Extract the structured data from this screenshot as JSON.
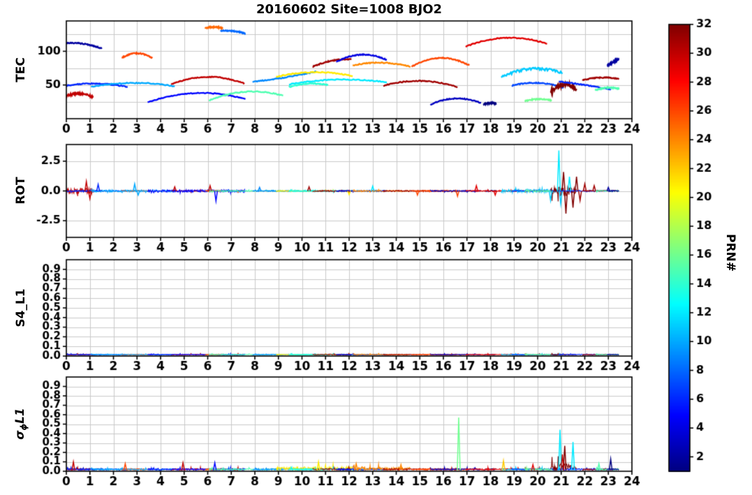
{
  "title": "20160602 Site=1008 BJO2",
  "colorbar": {
    "label": "PRN#",
    "min": 1,
    "max": 32,
    "ticks": [
      2,
      4,
      6,
      8,
      10,
      12,
      14,
      16,
      18,
      20,
      22,
      24,
      26,
      28,
      30,
      32
    ],
    "colormap": "jet"
  },
  "axes": {
    "xlim": [
      0,
      24
    ],
    "xticks": [
      0,
      1,
      2,
      3,
      4,
      5,
      6,
      7,
      8,
      9,
      10,
      11,
      12,
      13,
      14,
      15,
      16,
      17,
      18,
      19,
      20,
      21,
      22,
      23,
      24
    ]
  },
  "panels": [
    {
      "ylabel": "TEC",
      "ylim": [
        0,
        145
      ],
      "yticks": [
        {
          "v": 50,
          "label": "50"
        },
        {
          "v": 100,
          "label": "100"
        }
      ],
      "ygrid": [
        25,
        50,
        75,
        100,
        125
      ]
    },
    {
      "ylabel": "ROT",
      "ylim": [
        -3.9,
        3.9
      ],
      "yticks": [
        {
          "v": 2.5,
          "label": "2.5"
        },
        {
          "v": 0,
          "label": "0.0"
        },
        {
          "v": -2.5,
          "label": "-2.5"
        }
      ],
      "ygrid": [
        -2.5,
        0,
        2.5
      ]
    },
    {
      "ylabel": "S4_L1",
      "ylim": [
        0,
        1
      ],
      "yticks": [
        {
          "v": 0.9,
          "label": "0.9"
        },
        {
          "v": 0.8,
          "label": "0.8"
        },
        {
          "v": 0.7,
          "label": "0.7"
        },
        {
          "v": 0.6,
          "label": "0.6"
        },
        {
          "v": 0.5,
          "label": "0.5"
        },
        {
          "v": 0.4,
          "label": "0.4"
        },
        {
          "v": 0.3,
          "label": "0.3"
        },
        {
          "v": 0.2,
          "label": "0.2"
        },
        {
          "v": 0.1,
          "label": "0.1"
        },
        {
          "v": 0,
          "label": "0.0"
        }
      ],
      "ygrid": [
        0.1,
        0.2,
        0.3,
        0.4,
        0.5,
        0.6,
        0.7,
        0.8,
        0.9
      ]
    },
    {
      "ylabel_main": "σ",
      "ylabel_sub": "ϕ",
      "ylabel_rest": "L1",
      "ylim": [
        0,
        1
      ],
      "yticks": [
        {
          "v": 0.9,
          "label": "0.9"
        },
        {
          "v": 0.8,
          "label": "0.8"
        },
        {
          "v": 0.7,
          "label": "0.7"
        },
        {
          "v": 0.6,
          "label": "0.6"
        },
        {
          "v": 0.5,
          "label": "0.5"
        },
        {
          "v": 0.4,
          "label": "0.4"
        },
        {
          "v": 0.3,
          "label": "0.3"
        },
        {
          "v": 0.2,
          "label": "0.2"
        },
        {
          "v": 0.1,
          "label": "0.1"
        },
        {
          "v": 0,
          "label": "0.0"
        }
      ],
      "ygrid": [
        0.1,
        0.2,
        0.3,
        0.4,
        0.5,
        0.6,
        0.7,
        0.8,
        0.9
      ]
    }
  ],
  "chart_data": {
    "type": "line",
    "panels": [
      "TEC",
      "ROT",
      "S4_L1",
      "sigma_phi_L1"
    ],
    "x_range_hours": [
      0,
      24
    ],
    "prn_range": [
      1,
      32
    ],
    "tec_arcs": [
      {
        "prn": 2,
        "t0": 0.0,
        "t1": 1.5,
        "y0": 112,
        "yp": 111,
        "y1": 104
      },
      {
        "prn": 30,
        "t0": 0.0,
        "t1": 1.15,
        "y0": 34,
        "yp": 37,
        "y1": 32,
        "n": 1.6,
        "ra": 0.22
      },
      {
        "prn": 6,
        "t0": 0.0,
        "t1": 2.6,
        "y0": 49,
        "yp": 52,
        "y1": 47
      },
      {
        "prn": 26,
        "t0": 2.35,
        "t1": 3.65,
        "y0": 90,
        "yp": 97,
        "y1": 90
      },
      {
        "prn": 10,
        "t0": 1.05,
        "t1": 4.6,
        "y0": 47,
        "yp": 53,
        "y1": 48,
        "ra": 0.09
      },
      {
        "prn": 30,
        "t0": 4.45,
        "t1": 7.55,
        "y0": 51,
        "yp": 62,
        "y1": 52
      },
      {
        "prn": 5,
        "t0": 3.45,
        "t1": 7.6,
        "y0": 24,
        "yp": 38,
        "y1": 29,
        "ra": 0.1
      },
      {
        "prn": 25,
        "t0": 5.9,
        "t1": 6.65,
        "y0": 134,
        "yp": 136,
        "y1": 134
      },
      {
        "prn": 8,
        "t0": 6.55,
        "t1": 7.6,
        "y0": 130,
        "yp": 130,
        "y1": 126
      },
      {
        "prn": 15,
        "t0": 6.05,
        "t1": 9.2,
        "y0": 27,
        "yp": 40,
        "y1": 34
      },
      {
        "prn": 9,
        "t0": 7.9,
        "t1": 10.6,
        "y0": 55,
        "yp": 61,
        "y1": 70
      },
      {
        "prn": 21,
        "t0": 8.9,
        "t1": 12.15,
        "y0": 62,
        "yp": 69,
        "y1": 63,
        "sa": 0.035
      },
      {
        "prn": 12,
        "t0": 9.45,
        "t1": 13.6,
        "y0": 51,
        "yp": 58,
        "y1": 54
      },
      {
        "prn": 14,
        "t0": 9.45,
        "t1": 11.1,
        "y0": 47,
        "yp": 52,
        "y1": 50
      },
      {
        "prn": 31,
        "t0": 10.45,
        "t1": 12.1,
        "y0": 77,
        "yp": 86,
        "y1": 88
      },
      {
        "prn": 4,
        "t0": 11.45,
        "t1": 13.6,
        "y0": 84,
        "yp": 95,
        "y1": 87
      },
      {
        "prn": 24,
        "t0": 12.15,
        "t1": 14.6,
        "y0": 79,
        "yp": 83,
        "y1": 77,
        "sa": 0.03
      },
      {
        "prn": 31,
        "t0": 13.45,
        "t1": 16.6,
        "y0": 49,
        "yp": 56,
        "y1": 47
      },
      {
        "prn": 26,
        "t0": 14.65,
        "t1": 17.1,
        "y0": 77,
        "yp": 90,
        "y1": 79
      },
      {
        "prn": 3,
        "t0": 15.45,
        "t1": 17.6,
        "y0": 21,
        "yp": 30,
        "y1": 23
      },
      {
        "prn": 1,
        "t0": 17.7,
        "t1": 18.25,
        "y0": 21,
        "yp": 23,
        "y1": 22
      },
      {
        "prn": 29,
        "t0": 16.95,
        "t1": 20.4,
        "y0": 107,
        "yp": 120,
        "y1": 111
      },
      {
        "prn": 11,
        "t0": 18.45,
        "t1": 21.05,
        "y0": 61,
        "yp": 74,
        "y1": 67,
        "n": 2.0,
        "ra": 0.13
      },
      {
        "prn": 7,
        "t0": 18.9,
        "t1": 21.1,
        "y0": 49,
        "yp": 53,
        "y1": 46
      },
      {
        "prn": 16,
        "t0": 19.45,
        "t1": 20.6,
        "y0": 26,
        "yp": 29,
        "y1": 27
      },
      {
        "prn": 32,
        "t0": 20.55,
        "t1": 21.65,
        "y0": 39,
        "yp": 50,
        "y1": 44,
        "n": 2.6,
        "ra": 0.42,
        "sa": 0.07
      },
      {
        "prn": 6,
        "t0": 20.9,
        "t1": 23.1,
        "y0": 55,
        "yp": 50,
        "y1": 43
      },
      {
        "prn": 31,
        "t0": 21.9,
        "t1": 23.45,
        "y0": 57,
        "yp": 61,
        "y1": 59
      },
      {
        "prn": 15,
        "t0": 22.45,
        "t1": 23.45,
        "y0": 42,
        "yp": 46,
        "y1": 44
      },
      {
        "prn": 2,
        "t0": 22.95,
        "t1": 23.45,
        "y0": 79,
        "yp": 84,
        "y1": 88
      }
    ],
    "rot_spikes": [
      {
        "t": 0.85,
        "prn": 30,
        "a": 0.8
      },
      {
        "t": 1.0,
        "prn": 30,
        "a": -0.65
      },
      {
        "t": 1.35,
        "prn": 6,
        "a": 0.55
      },
      {
        "t": 2.9,
        "prn": 10,
        "a": 0.6
      },
      {
        "t": 3.05,
        "prn": 10,
        "a": -0.35
      },
      {
        "t": 4.6,
        "prn": 30,
        "a": 0.35
      },
      {
        "t": 6.1,
        "prn": 30,
        "a": 0.45
      },
      {
        "t": 6.35,
        "prn": 5,
        "a": -0.85
      },
      {
        "t": 8.2,
        "prn": 9,
        "a": 0.3
      },
      {
        "t": 10.3,
        "prn": 31,
        "a": 0.35
      },
      {
        "t": 12.0,
        "prn": 21,
        "a": -0.3
      },
      {
        "t": 13.0,
        "prn": 12,
        "a": 0.4
      },
      {
        "t": 14.9,
        "prn": 26,
        "a": -0.35
      },
      {
        "t": 16.6,
        "prn": 26,
        "a": -0.45
      },
      {
        "t": 17.4,
        "prn": 29,
        "a": 0.45
      },
      {
        "t": 18.2,
        "prn": 29,
        "a": -0.35
      },
      {
        "t": 20.55,
        "prn": 11,
        "a": -0.8
      },
      {
        "t": 20.9,
        "prn": 12,
        "a": 3.4
      },
      {
        "t": 20.98,
        "prn": 11,
        "a": -1.1
      },
      {
        "t": 21.1,
        "prn": 32,
        "a": 1.6
      },
      {
        "t": 21.2,
        "prn": 32,
        "a": -1.9
      },
      {
        "t": 21.35,
        "prn": 12,
        "a": 1.2
      },
      {
        "t": 21.5,
        "prn": 32,
        "a": -1.4
      },
      {
        "t": 21.65,
        "prn": 32,
        "a": 1.2
      },
      {
        "t": 21.8,
        "prn": 31,
        "a": -0.8
      },
      {
        "t": 22.0,
        "prn": 31,
        "a": 0.6
      },
      {
        "t": 22.4,
        "prn": 31,
        "a": 0.45
      },
      {
        "t": 23.0,
        "prn": 2,
        "a": 0.3
      }
    ],
    "s4_baseline": 0.012,
    "sigma_spikes": [
      {
        "t": 16.65,
        "prn": 16,
        "a": 0.56
      },
      {
        "t": 20.95,
        "prn": 12,
        "a": 0.43
      },
      {
        "t": 21.5,
        "prn": 12,
        "a": 0.3
      },
      {
        "t": 21.15,
        "prn": 32,
        "a": 0.26
      },
      {
        "t": 21.05,
        "prn": 30,
        "a": 0.17
      },
      {
        "t": 18.55,
        "prn": 22,
        "a": 0.1
      },
      {
        "t": 23.1,
        "prn": 1,
        "a": 0.12
      },
      {
        "t": 10.7,
        "prn": 21,
        "a": 0.09
      },
      {
        "t": 4.95,
        "prn": 30,
        "a": 0.08
      },
      {
        "t": 6.3,
        "prn": 5,
        "a": 0.08
      },
      {
        "t": 12.3,
        "prn": 24,
        "a": 0.07
      },
      {
        "t": 2.5,
        "prn": 26,
        "a": 0.07
      },
      {
        "t": 0.3,
        "prn": 30,
        "a": 0.09
      },
      {
        "t": 14.2,
        "prn": 24,
        "a": 0.06
      },
      {
        "t": 19.8,
        "prn": 29,
        "a": 0.06
      },
      {
        "t": 22.6,
        "prn": 15,
        "a": 0.07
      }
    ]
  }
}
